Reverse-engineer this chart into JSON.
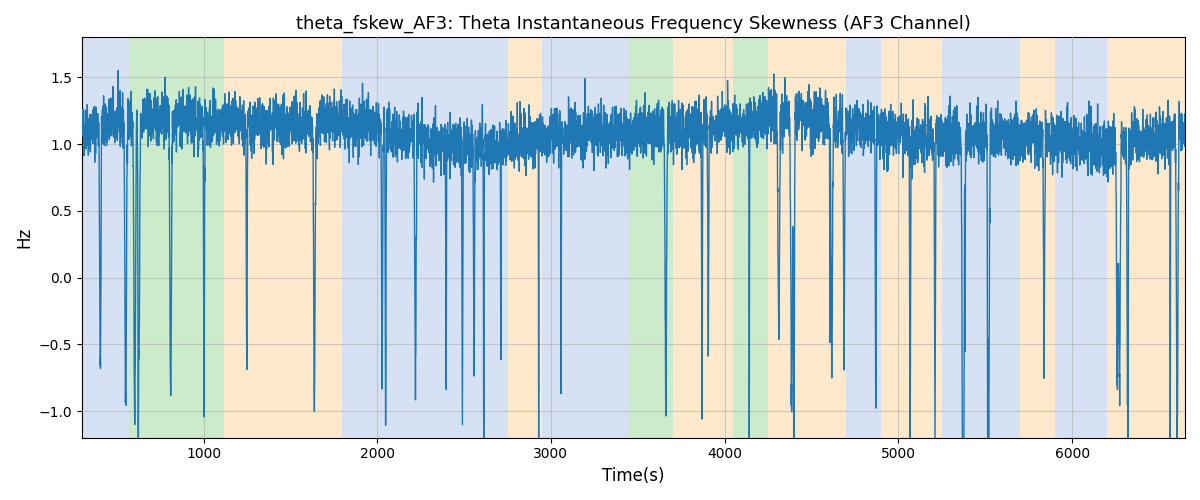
{
  "title": "theta_fskew_AF3: Theta Instantaneous Frequency Skewness (AF3 Channel)",
  "xlabel": "Time(s)",
  "ylabel": "Hz",
  "xlim": [
    300,
    6650
  ],
  "ylim": [
    -1.2,
    1.8
  ],
  "line_color": "#1f77b4",
  "line_width": 1.0,
  "bg_regions": [
    {
      "xmin": 300,
      "xmax": 570,
      "color": "#aec6e8",
      "alpha": 0.5
    },
    {
      "xmin": 570,
      "xmax": 1120,
      "color": "#98d898",
      "alpha": 0.5
    },
    {
      "xmin": 1120,
      "xmax": 1800,
      "color": "#ffd59a",
      "alpha": 0.5
    },
    {
      "xmin": 1800,
      "xmax": 2750,
      "color": "#aec6e8",
      "alpha": 0.5
    },
    {
      "xmin": 2750,
      "xmax": 2950,
      "color": "#ffd59a",
      "alpha": 0.5
    },
    {
      "xmin": 2950,
      "xmax": 3450,
      "color": "#aec6e8",
      "alpha": 0.5
    },
    {
      "xmin": 3450,
      "xmax": 3700,
      "color": "#98d898",
      "alpha": 0.5
    },
    {
      "xmin": 3700,
      "xmax": 4050,
      "color": "#ffd59a",
      "alpha": 0.5
    },
    {
      "xmin": 4050,
      "xmax": 4250,
      "color": "#98d898",
      "alpha": 0.5
    },
    {
      "xmin": 4250,
      "xmax": 4700,
      "color": "#ffd59a",
      "alpha": 0.5
    },
    {
      "xmin": 4700,
      "xmax": 4900,
      "color": "#aec6e8",
      "alpha": 0.5
    },
    {
      "xmin": 4900,
      "xmax": 5250,
      "color": "#ffd59a",
      "alpha": 0.5
    },
    {
      "xmin": 5250,
      "xmax": 5700,
      "color": "#aec6e8",
      "alpha": 0.5
    },
    {
      "xmin": 5700,
      "xmax": 5900,
      "color": "#ffd59a",
      "alpha": 0.5
    },
    {
      "xmin": 5900,
      "xmax": 6200,
      "color": "#aec6e8",
      "alpha": 0.5
    },
    {
      "xmin": 6200,
      "xmax": 6650,
      "color": "#ffd59a",
      "alpha": 0.5
    }
  ],
  "seed": 42,
  "n_points": 6350,
  "x_start": 300,
  "x_end": 6650,
  "figsize": [
    12,
    5
  ],
  "dpi": 100,
  "grid_color": "#b0b0b0",
  "grid_alpha": 0.6,
  "grid_linewidth": 0.8,
  "xticks": [
    1000,
    2000,
    3000,
    4000,
    5000,
    6000
  ],
  "yticks": [
    -1.0,
    -0.5,
    0.0,
    0.5,
    1.0,
    1.5
  ]
}
